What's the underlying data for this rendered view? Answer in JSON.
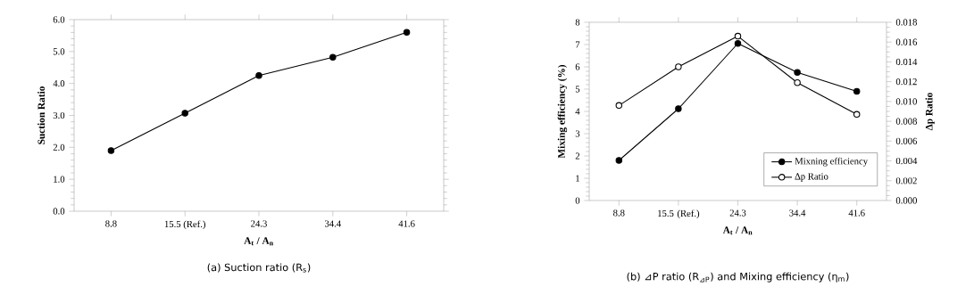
{
  "chart_data": [
    {
      "type": "line",
      "xlabel": "**A$_{t}$ / A$_{n}$**",
      "ylabel": "Suction Ratio",
      "categories": [
        "8.8",
        "15.5 (Ref.)",
        "24.3",
        "34.4",
        "41.6"
      ],
      "values": [
        1.9,
        3.07,
        4.25,
        4.82,
        5.6
      ],
      "color": "#000000",
      "marker": "circle",
      "ylim": [
        0,
        6
      ],
      "yticks": [
        {
          "value": 0,
          "label": "0.0"
        },
        {
          "value": 1,
          "label": "1.0"
        },
        {
          "value": 2,
          "label": "2.0"
        },
        {
          "value": 3,
          "label": "3.0"
        },
        {
          "value": 4,
          "label": "4.0"
        },
        {
          "value": 5,
          "label": "5.0"
        },
        {
          "value": 6,
          "label": "6.0"
        }
      ],
      "annotations": [
        "(a)  Suction ratio (R$_{s}$)"
      ]
    },
    {
      "type": "line",
      "xlabel": "**A$_{t}$ / A$_{n}$**",
      "ylabel": "Mixing efficiency (%)",
      "y2label": "∆p Ratio",
      "categories": [
        "8.8",
        "15.5 (Ref.)",
        "24.3",
        "34.4",
        "41.6"
      ],
      "series": [
        {
          "name": "Mixning efficiency",
          "color": "#000000",
          "values": [
            1.8,
            4.12,
            7.05,
            5.75,
            4.9
          ]
        },
        {
          "name": "∆p Ratio",
          "color": "#000000",
          "axis": "y2",
          "values": [
            0.0096,
            0.0135,
            0.0166,
            0.0119,
            0.0087
          ]
        }
      ],
      "marker": "circle",
      "legend": "bottom right",
      "ylim": [
        0,
        8
      ],
      "yticks": [
        0,
        1,
        2,
        3,
        4,
        5,
        6,
        7,
        8
      ],
      "y2lim": [
        0,
        0.018
      ],
      "y2ticks": [
        {
          "value": 0,
          "label": "0.000"
        },
        {
          "value": 0.002,
          "label": "0.002"
        },
        {
          "value": 0.004,
          "label": "0.004"
        },
        {
          "value": 0.006,
          "label": "0.006"
        },
        {
          "value": 0.008,
          "label": "0.008"
        },
        {
          "value": 0.01,
          "label": "0.010"
        },
        {
          "value": 0.012,
          "label": "0.012"
        },
        {
          "value": 0.014,
          "label": "0.014"
        },
        {
          "value": 0.016,
          "label": "0.016"
        },
        {
          "value": 0.018,
          "label": "0.018"
        }
      ],
      "annotations": [
        "(b)  ⊿P ratio (R$_{⊿P}$) and Mixing efficiency (η$_{m}$)"
      ]
    }
  ]
}
